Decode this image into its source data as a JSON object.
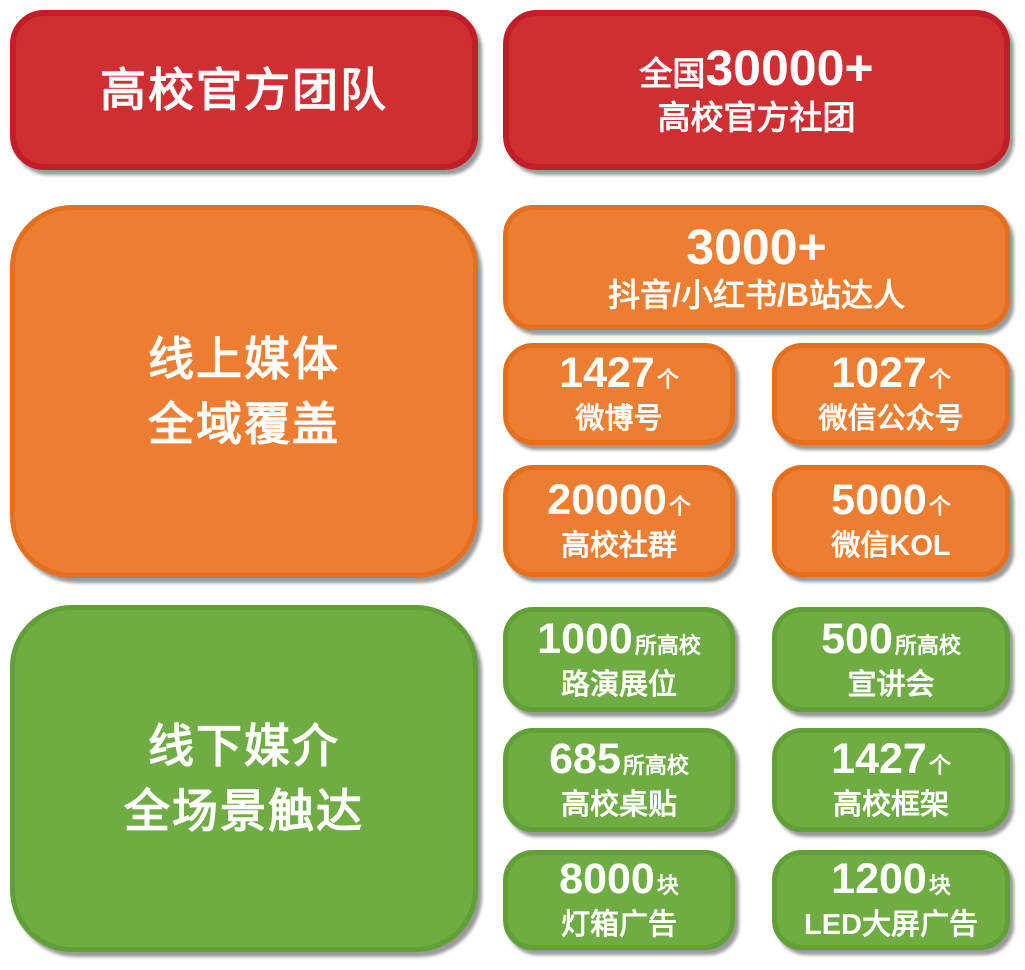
{
  "colors": {
    "red": "#CF2E33",
    "red_border": "#C11F27",
    "orange": "#ED7D31",
    "orange_border": "#E4701F",
    "green": "#6FAC44",
    "green_border": "#619F37",
    "text": "#FFFFFF"
  },
  "sections": [
    {
      "title": "高校官方团队",
      "stat": {
        "prefix": "全国",
        "number": "30000+",
        "label": "高校官方社团"
      }
    },
    {
      "title_lines": [
        "线上媒体",
        "全域覆盖"
      ],
      "feature": {
        "number": "3000+",
        "label": "抖音/小红书/B站达人"
      },
      "stats": [
        {
          "number": "1427",
          "unit": "个",
          "label": "微博号"
        },
        {
          "number": "1027",
          "unit": "个",
          "label": "微信公众号"
        },
        {
          "number": "20000",
          "unit": "个",
          "label": "高校社群"
        },
        {
          "number": "5000",
          "unit": "个",
          "label": "微信KOL"
        }
      ]
    },
    {
      "title_lines": [
        "线下媒介",
        "全场景触达"
      ],
      "stats": [
        {
          "number": "1000",
          "unit": "所高校",
          "label": "路演展位"
        },
        {
          "number": "500",
          "unit": "所高校",
          "label": "宣讲会"
        },
        {
          "number": "685",
          "unit": "所高校",
          "label": "高校桌贴"
        },
        {
          "number": "1427",
          "unit": "个",
          "label": "高校框架"
        },
        {
          "number": "8000",
          "unit": "块",
          "label": "灯箱广告"
        },
        {
          "number": "1200",
          "unit": "块",
          "label": "LED大屏广告"
        }
      ]
    }
  ]
}
